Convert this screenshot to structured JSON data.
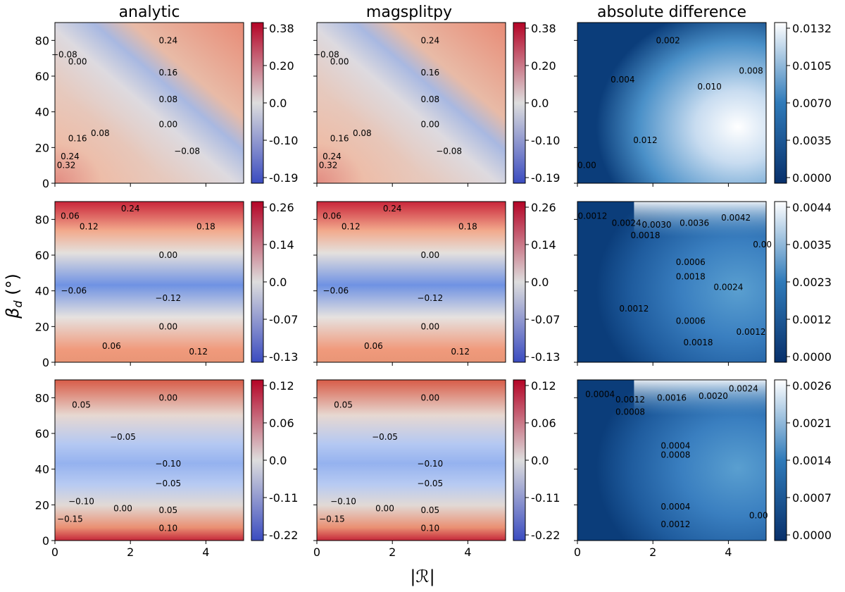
{
  "figure": {
    "column_titles": [
      "analytic",
      "magsplitpy",
      "absolute difference"
    ],
    "xlabel": "|ℛ|",
    "ylabel_symbol": "β",
    "ylabel_subscript": "d",
    "ylabel_unit": " (°)"
  },
  "chart_data": {
    "type": "heatmap",
    "xlabel": "|ℛ|",
    "ylabel": "β_d (°)",
    "xlim": [
      0,
      5
    ],
    "ylim": [
      0,
      90
    ],
    "x_ticks": [
      "0",
      "2",
      "4"
    ],
    "y_ticks": [
      "0",
      "20",
      "40",
      "60",
      "80"
    ],
    "x_tick_values": [
      0,
      2,
      4
    ],
    "y_tick_values": [
      0,
      20,
      40,
      60,
      80
    ],
    "colormaps": {
      "diverging": [
        "#3b4cc0",
        "#dddddd",
        "#b40426"
      ],
      "sequential": [
        "#08306b",
        "#2f7ab9",
        "#ffffff"
      ]
    },
    "rows": [
      {
        "cbar_ticks_div": [
          "0.38",
          "0.20",
          "0.0",
          "-0.10",
          "-0.19"
        ],
        "cbar_ticks_diff": [
          "0.0132",
          "0.0105",
          "0.0070",
          "0.0035",
          "0.0000"
        ],
        "contour_labels_div": [
          {
            "text": "-0.08",
            "x": 0.25,
            "y": 72
          },
          {
            "text": "0.00",
            "x": 0.6,
            "y": 68
          },
          {
            "text": "0.24",
            "x": 3.0,
            "y": 80
          },
          {
            "text": "0.16",
            "x": 3.0,
            "y": 62
          },
          {
            "text": "0.08",
            "x": 3.0,
            "y": 47
          },
          {
            "text": "0.00",
            "x": 3.0,
            "y": 33
          },
          {
            "text": "-0.08",
            "x": 3.5,
            "y": 18
          },
          {
            "text": "0.16",
            "x": 0.6,
            "y": 25
          },
          {
            "text": "0.24",
            "x": 0.4,
            "y": 15
          },
          {
            "text": "0.32",
            "x": 0.3,
            "y": 10
          },
          {
            "text": "0.08",
            "x": 1.2,
            "y": 28
          }
        ],
        "contour_labels_diff": [
          {
            "text": "0.002",
            "x": 2.4,
            "y": 80
          },
          {
            "text": "0.008",
            "x": 4.6,
            "y": 63
          },
          {
            "text": "0.010",
            "x": 3.5,
            "y": 54
          },
          {
            "text": "0.004",
            "x": 1.2,
            "y": 58
          },
          {
            "text": "0.012",
            "x": 1.8,
            "y": 24
          },
          {
            "text": "0.00",
            "x": 0.25,
            "y": 10
          }
        ]
      },
      {
        "cbar_ticks_div": [
          "0.26",
          "0.14",
          "0.0",
          "-0.07",
          "-0.13"
        ],
        "cbar_ticks_diff": [
          "0.0044",
          "0.0035",
          "0.0023",
          "0.0012",
          "0.0000"
        ],
        "contour_labels_div": [
          {
            "text": "0.24",
            "x": 2.0,
            "y": 86
          },
          {
            "text": "0.18",
            "x": 4.0,
            "y": 76
          },
          {
            "text": "0.12",
            "x": 0.9,
            "y": 76
          },
          {
            "text": "0.06",
            "x": 0.4,
            "y": 82
          },
          {
            "text": "0.00",
            "x": 3.0,
            "y": 60
          },
          {
            "text": "-0.06",
            "x": 0.5,
            "y": 40
          },
          {
            "text": "-0.12",
            "x": 3.0,
            "y": 36
          },
          {
            "text": "0.00",
            "x": 3.0,
            "y": 20
          },
          {
            "text": "0.06",
            "x": 1.5,
            "y": 9
          },
          {
            "text": "0.12",
            "x": 3.8,
            "y": 6
          }
        ],
        "contour_labels_diff": [
          {
            "text": "0.0012",
            "x": 0.4,
            "y": 82
          },
          {
            "text": "0.0024",
            "x": 1.3,
            "y": 78
          },
          {
            "text": "0.0030",
            "x": 2.1,
            "y": 77
          },
          {
            "text": "0.0036",
            "x": 3.1,
            "y": 78
          },
          {
            "text": "0.0042",
            "x": 4.2,
            "y": 81
          },
          {
            "text": "0.0018",
            "x": 1.8,
            "y": 71
          },
          {
            "text": "0.00",
            "x": 4.9,
            "y": 66
          },
          {
            "text": "0.0006",
            "x": 3.0,
            "y": 56
          },
          {
            "text": "0.0018",
            "x": 3.0,
            "y": 48
          },
          {
            "text": "0.0024",
            "x": 4.0,
            "y": 42
          },
          {
            "text": "0.0012",
            "x": 1.5,
            "y": 30
          },
          {
            "text": "0.0006",
            "x": 3.0,
            "y": 23
          },
          {
            "text": "0.0012",
            "x": 4.6,
            "y": 17
          },
          {
            "text": "0.0018",
            "x": 3.2,
            "y": 11
          }
        ]
      },
      {
        "cbar_ticks_div": [
          "0.12",
          "0.06",
          "0.0",
          "-0.11",
          "-0.22"
        ],
        "cbar_ticks_diff": [
          "0.0026",
          "0.0021",
          "0.0014",
          "0.0007",
          "0.0000"
        ],
        "contour_labels_div": [
          {
            "text": "0.05",
            "x": 0.7,
            "y": 76
          },
          {
            "text": "0.00",
            "x": 3.0,
            "y": 80
          },
          {
            "text": "-0.05",
            "x": 1.8,
            "y": 58
          },
          {
            "text": "-0.10",
            "x": 3.0,
            "y": 43
          },
          {
            "text": "-0.05",
            "x": 3.0,
            "y": 32
          },
          {
            "text": "-0.10",
            "x": 0.7,
            "y": 22
          },
          {
            "text": "-0.15",
            "x": 0.4,
            "y": 12
          },
          {
            "text": "0.00",
            "x": 1.8,
            "y": 18
          },
          {
            "text": "0.05",
            "x": 3.0,
            "y": 17
          },
          {
            "text": "0.10",
            "x": 3.0,
            "y": 7
          }
        ],
        "contour_labels_diff": [
          {
            "text": "0.0004",
            "x": 0.6,
            "y": 82
          },
          {
            "text": "0.0012",
            "x": 1.4,
            "y": 79
          },
          {
            "text": "0.0016",
            "x": 2.5,
            "y": 80
          },
          {
            "text": "0.0020",
            "x": 3.6,
            "y": 81
          },
          {
            "text": "0.0024",
            "x": 4.4,
            "y": 85
          },
          {
            "text": "0.0008",
            "x": 1.4,
            "y": 72
          },
          {
            "text": "0.0004",
            "x": 2.6,
            "y": 53
          },
          {
            "text": "0.0008",
            "x": 2.6,
            "y": 48
          },
          {
            "text": "0.0004",
            "x": 2.6,
            "y": 19
          },
          {
            "text": "0.00",
            "x": 4.8,
            "y": 14
          },
          {
            "text": "0.0012",
            "x": 2.6,
            "y": 9
          }
        ]
      }
    ]
  }
}
